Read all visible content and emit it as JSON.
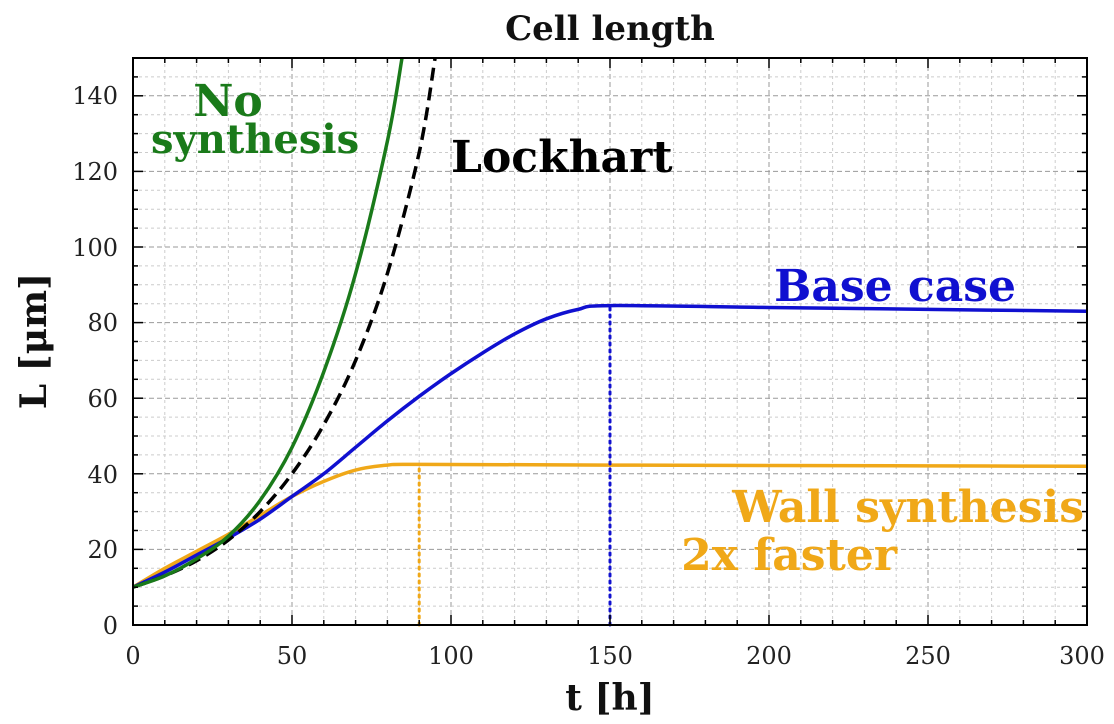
{
  "chart_data": {
    "type": "line",
    "title": "Cell length",
    "xlabel": "t [h]",
    "ylabel": "L [μm]",
    "xlim": [
      0,
      300
    ],
    "ylim": [
      0,
      150
    ],
    "xticks": [
      "0",
      "50",
      "100",
      "150",
      "200",
      "250",
      "300"
    ],
    "yticks": [
      "0",
      "20",
      "40",
      "60",
      "80",
      "100",
      "120",
      "140"
    ],
    "grid": true,
    "legend": "none",
    "series": [
      {
        "label_lines": [
          "No",
          "synthesis"
        ],
        "color": "#1a7a1a",
        "style": "solid",
        "x": [
          0,
          10,
          20,
          30,
          40,
          50,
          60,
          70,
          80,
          84.6
        ],
        "y": [
          10,
          13,
          17.5,
          23.5,
          33,
          47,
          67,
          93,
          128,
          150
        ]
      },
      {
        "label_lines": [
          "Lockhart"
        ],
        "color": "#000000",
        "style": "dashed",
        "x": [
          0,
          10,
          20,
          30,
          40,
          50,
          60,
          70,
          80,
          90,
          95
        ],
        "y": [
          10,
          13,
          17,
          22.5,
          30,
          40,
          53,
          70,
          93,
          125,
          150
        ]
      },
      {
        "label_lines": [
          "Base case"
        ],
        "color": "#1010d0",
        "style": "solid",
        "marker_x": 150,
        "x": [
          0,
          10,
          20,
          30,
          40,
          50,
          60,
          70,
          80,
          90,
          100,
          110,
          120,
          130,
          140,
          150,
          200,
          250,
          300
        ],
        "y": [
          10,
          14,
          18.5,
          23,
          28,
          34,
          40,
          47,
          54,
          60.5,
          66.5,
          72,
          77,
          81,
          83.5,
          84.5,
          84,
          83.5,
          83
        ]
      },
      {
        "label_lines": [
          "Wall synthesis",
          "2x faster"
        ],
        "color": "#f0a818",
        "style": "solid",
        "marker_x": 90,
        "x": [
          0,
          10,
          20,
          30,
          40,
          50,
          60,
          70,
          80,
          90,
          150,
          200,
          250,
          300
        ],
        "y": [
          10,
          15,
          19.5,
          24,
          29,
          34,
          38,
          41,
          42.3,
          42.5,
          42.3,
          42.2,
          42.1,
          42
        ]
      }
    ]
  }
}
